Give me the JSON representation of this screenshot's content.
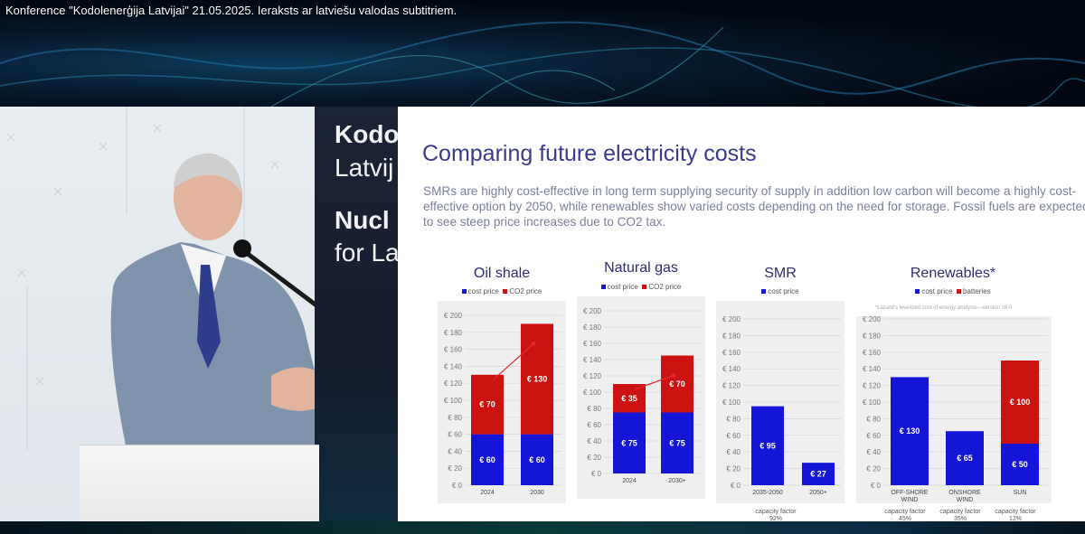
{
  "video": {
    "title": "Konference \"Kodolenerģija Latvijai\" 21.05.2025. Ieraksts ar latviešu valodas subtitriem."
  },
  "banner": {
    "lines": [
      "Kodo",
      "Latvij",
      "Nucl",
      "for La"
    ]
  },
  "slide": {
    "title": "Comparing future electricity costs",
    "subtitle": "SMRs are highly cost-effective in long term supplying security of supply in addition low carbon will become a highly cost-effective option by 2050, while renewables show varied costs depending on the need for storage. Fossil fuels are expected to see steep price increases due to CO2 tax."
  },
  "colors": {
    "cost": "#1515d8",
    "co2": "#cc1111",
    "connector": "#e02a2a",
    "plot_bg": "#efefef"
  },
  "chart_data": [
    {
      "type": "bar",
      "title": "Oil shale",
      "legend": [
        "cost price",
        "CO2 price"
      ],
      "categories": [
        "2024",
        "2030"
      ],
      "series": [
        {
          "name": "cost price",
          "values": [
            60,
            60
          ],
          "labels": [
            "€ 60",
            "€ 60"
          ]
        },
        {
          "name": "CO2 price",
          "values": [
            70,
            130
          ],
          "labels": [
            "€ 70",
            "€ 130"
          ]
        }
      ],
      "ylim": [
        0,
        200
      ],
      "ticks": [
        "€ 0",
        "€ 20",
        "€ 40",
        "€ 60",
        "€ 80",
        "€ 100",
        "€ 120",
        "€ 140",
        "€ 160",
        "€ 180",
        "€ 200"
      ],
      "connector": true
    },
    {
      "type": "bar",
      "title": "Natural gas",
      "legend": [
        "cost price",
        "CO2 price"
      ],
      "categories": [
        "2024",
        "2030+"
      ],
      "series": [
        {
          "name": "cost price",
          "values": [
            75,
            75
          ],
          "labels": [
            "€ 75",
            "€ 75"
          ]
        },
        {
          "name": "CO2 price",
          "values": [
            35,
            70
          ],
          "labels": [
            "€ 35",
            "€ 70"
          ]
        }
      ],
      "ylim": [
        0,
        200
      ],
      "ticks": [
        "€ 0",
        "€ 20",
        "€ 40",
        "€ 60",
        "€ 80",
        "€ 100",
        "€ 120",
        "€ 140",
        "€ 160",
        "€ 180",
        "€ 200"
      ],
      "connector": true
    },
    {
      "type": "bar",
      "title": "SMR",
      "legend": [
        "cost price"
      ],
      "categories": [
        "2035-2050",
        "2050+"
      ],
      "series": [
        {
          "name": "cost price",
          "values": [
            95,
            27
          ],
          "labels": [
            "€ 95",
            "€ 27"
          ]
        }
      ],
      "ylim": [
        0,
        200
      ],
      "ticks": [
        "€ 0",
        "€ 20",
        "€ 40",
        "€ 60",
        "€ 80",
        "€ 100",
        "€ 120",
        "€ 140",
        "€ 160",
        "€ 180",
        "€ 200"
      ],
      "captions": [
        "capacity factor\n92%"
      ],
      "connector": false
    },
    {
      "type": "bar",
      "title": "Renewables*",
      "legend": [
        "cost price",
        "batteries"
      ],
      "note": "*Lazard's levelized cost of energy analysis—version 16.0",
      "categories": [
        "OFF-SHORE\nWIND",
        "ONSHORE\nWIND",
        "SUN"
      ],
      "series": [
        {
          "name": "cost price",
          "values": [
            130,
            65,
            50
          ],
          "labels": [
            "€ 130",
            "€ 65",
            "€ 50"
          ]
        },
        {
          "name": "batteries",
          "values": [
            0,
            0,
            100
          ],
          "labels": [
            "",
            "",
            "€ 100"
          ]
        }
      ],
      "ylim": [
        0,
        200
      ],
      "ticks": [
        "€ 0",
        "€ 20",
        "€ 40",
        "€ 60",
        "€ 80",
        "€ 100",
        "€ 120",
        "€ 140",
        "€ 160",
        "€ 180",
        "€ 200"
      ],
      "captions": [
        "capacity factor\n45%",
        "capacity factor\n35%",
        "capacity factor\n12%"
      ],
      "connector": false
    }
  ]
}
